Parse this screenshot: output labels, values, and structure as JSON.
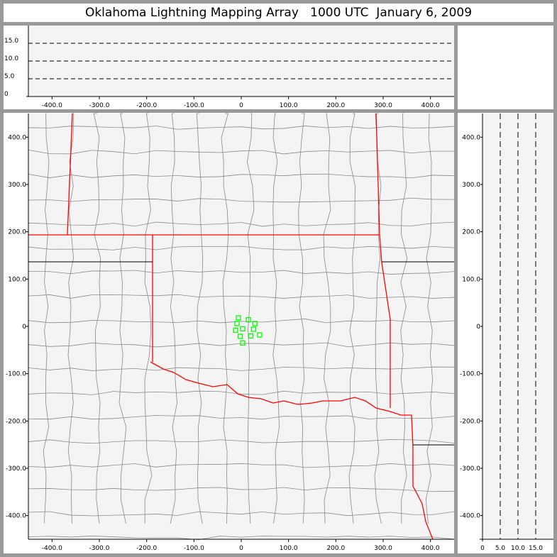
{
  "title": "Oklahoma Lightning Mapping Array   1000 UTC  January 6, 2009",
  "colors": {
    "plot_bg": "#f4f4f4",
    "county": "#8a8a8a",
    "state_border": "#ff0000",
    "source": "#00ff00",
    "frame": "#999999"
  },
  "chart_data": [
    {
      "type": "scatter",
      "panel": "plan-view",
      "xlim": [
        -450,
        450
      ],
      "ylim": [
        -450,
        450
      ],
      "xticks": [
        "-400.0",
        "-300.0",
        "-200.0",
        "-100.0",
        "0",
        "100.0",
        "200.0",
        "300.0",
        "400.0"
      ],
      "xtick_values": [
        -400,
        -300,
        -200,
        -100,
        0,
        100,
        200,
        300,
        400
      ],
      "yticks": [
        "400.0",
        "300.0",
        "200.0",
        "100.0",
        "0",
        "-100.0",
        "-200.0",
        "-300.0",
        "-400.0"
      ],
      "ytick_values": [
        400,
        300,
        200,
        100,
        0,
        -100,
        -200,
        -300,
        -400
      ],
      "marker": "hollow-square",
      "points": [
        [
          -6,
          18
        ],
        [
          -9,
          6
        ],
        [
          15,
          14
        ],
        [
          29,
          6
        ],
        [
          -12,
          -8
        ],
        [
          3,
          -5
        ],
        [
          26,
          -6
        ],
        [
          -2,
          -21
        ],
        [
          20,
          -20
        ],
        [
          39,
          -18
        ],
        [
          3,
          -35
        ]
      ]
    },
    {
      "type": "scatter",
      "panel": "east-west-vs-altitude",
      "xlim": [
        -450,
        450
      ],
      "ylim": [
        0,
        20
      ],
      "xticks": [
        "-400.0",
        "-300.0",
        "-200.0",
        "-100.0",
        "0",
        "100.0",
        "200.0",
        "300.0",
        "400.0"
      ],
      "xtick_values": [
        -400,
        -300,
        -200,
        -100,
        0,
        100,
        200,
        300,
        400
      ],
      "yticks": [
        "15.0",
        "10.0",
        "5.0",
        "0"
      ],
      "ytick_values": [
        15,
        10,
        5,
        0
      ],
      "dashed_reference_lines": [
        5,
        10,
        15
      ],
      "points": []
    },
    {
      "type": "scatter",
      "panel": "altitude-vs-north-south",
      "xlim": [
        0,
        20
      ],
      "ylim": [
        -450,
        450
      ],
      "xticks": [
        "0",
        "5.0",
        "10.0",
        "15.0"
      ],
      "xtick_values": [
        0,
        5,
        10,
        15
      ],
      "yticks": [
        "400.0",
        "300.0",
        "200.0",
        "100.0",
        "0",
        "-100.0",
        "-200.0",
        "-300.0",
        "-400.0"
      ],
      "ytick_values": [
        400,
        300,
        200,
        100,
        0,
        -100,
        -200,
        -300,
        -400
      ],
      "dashed_reference_lines": [
        5,
        10,
        15
      ],
      "points": []
    }
  ]
}
